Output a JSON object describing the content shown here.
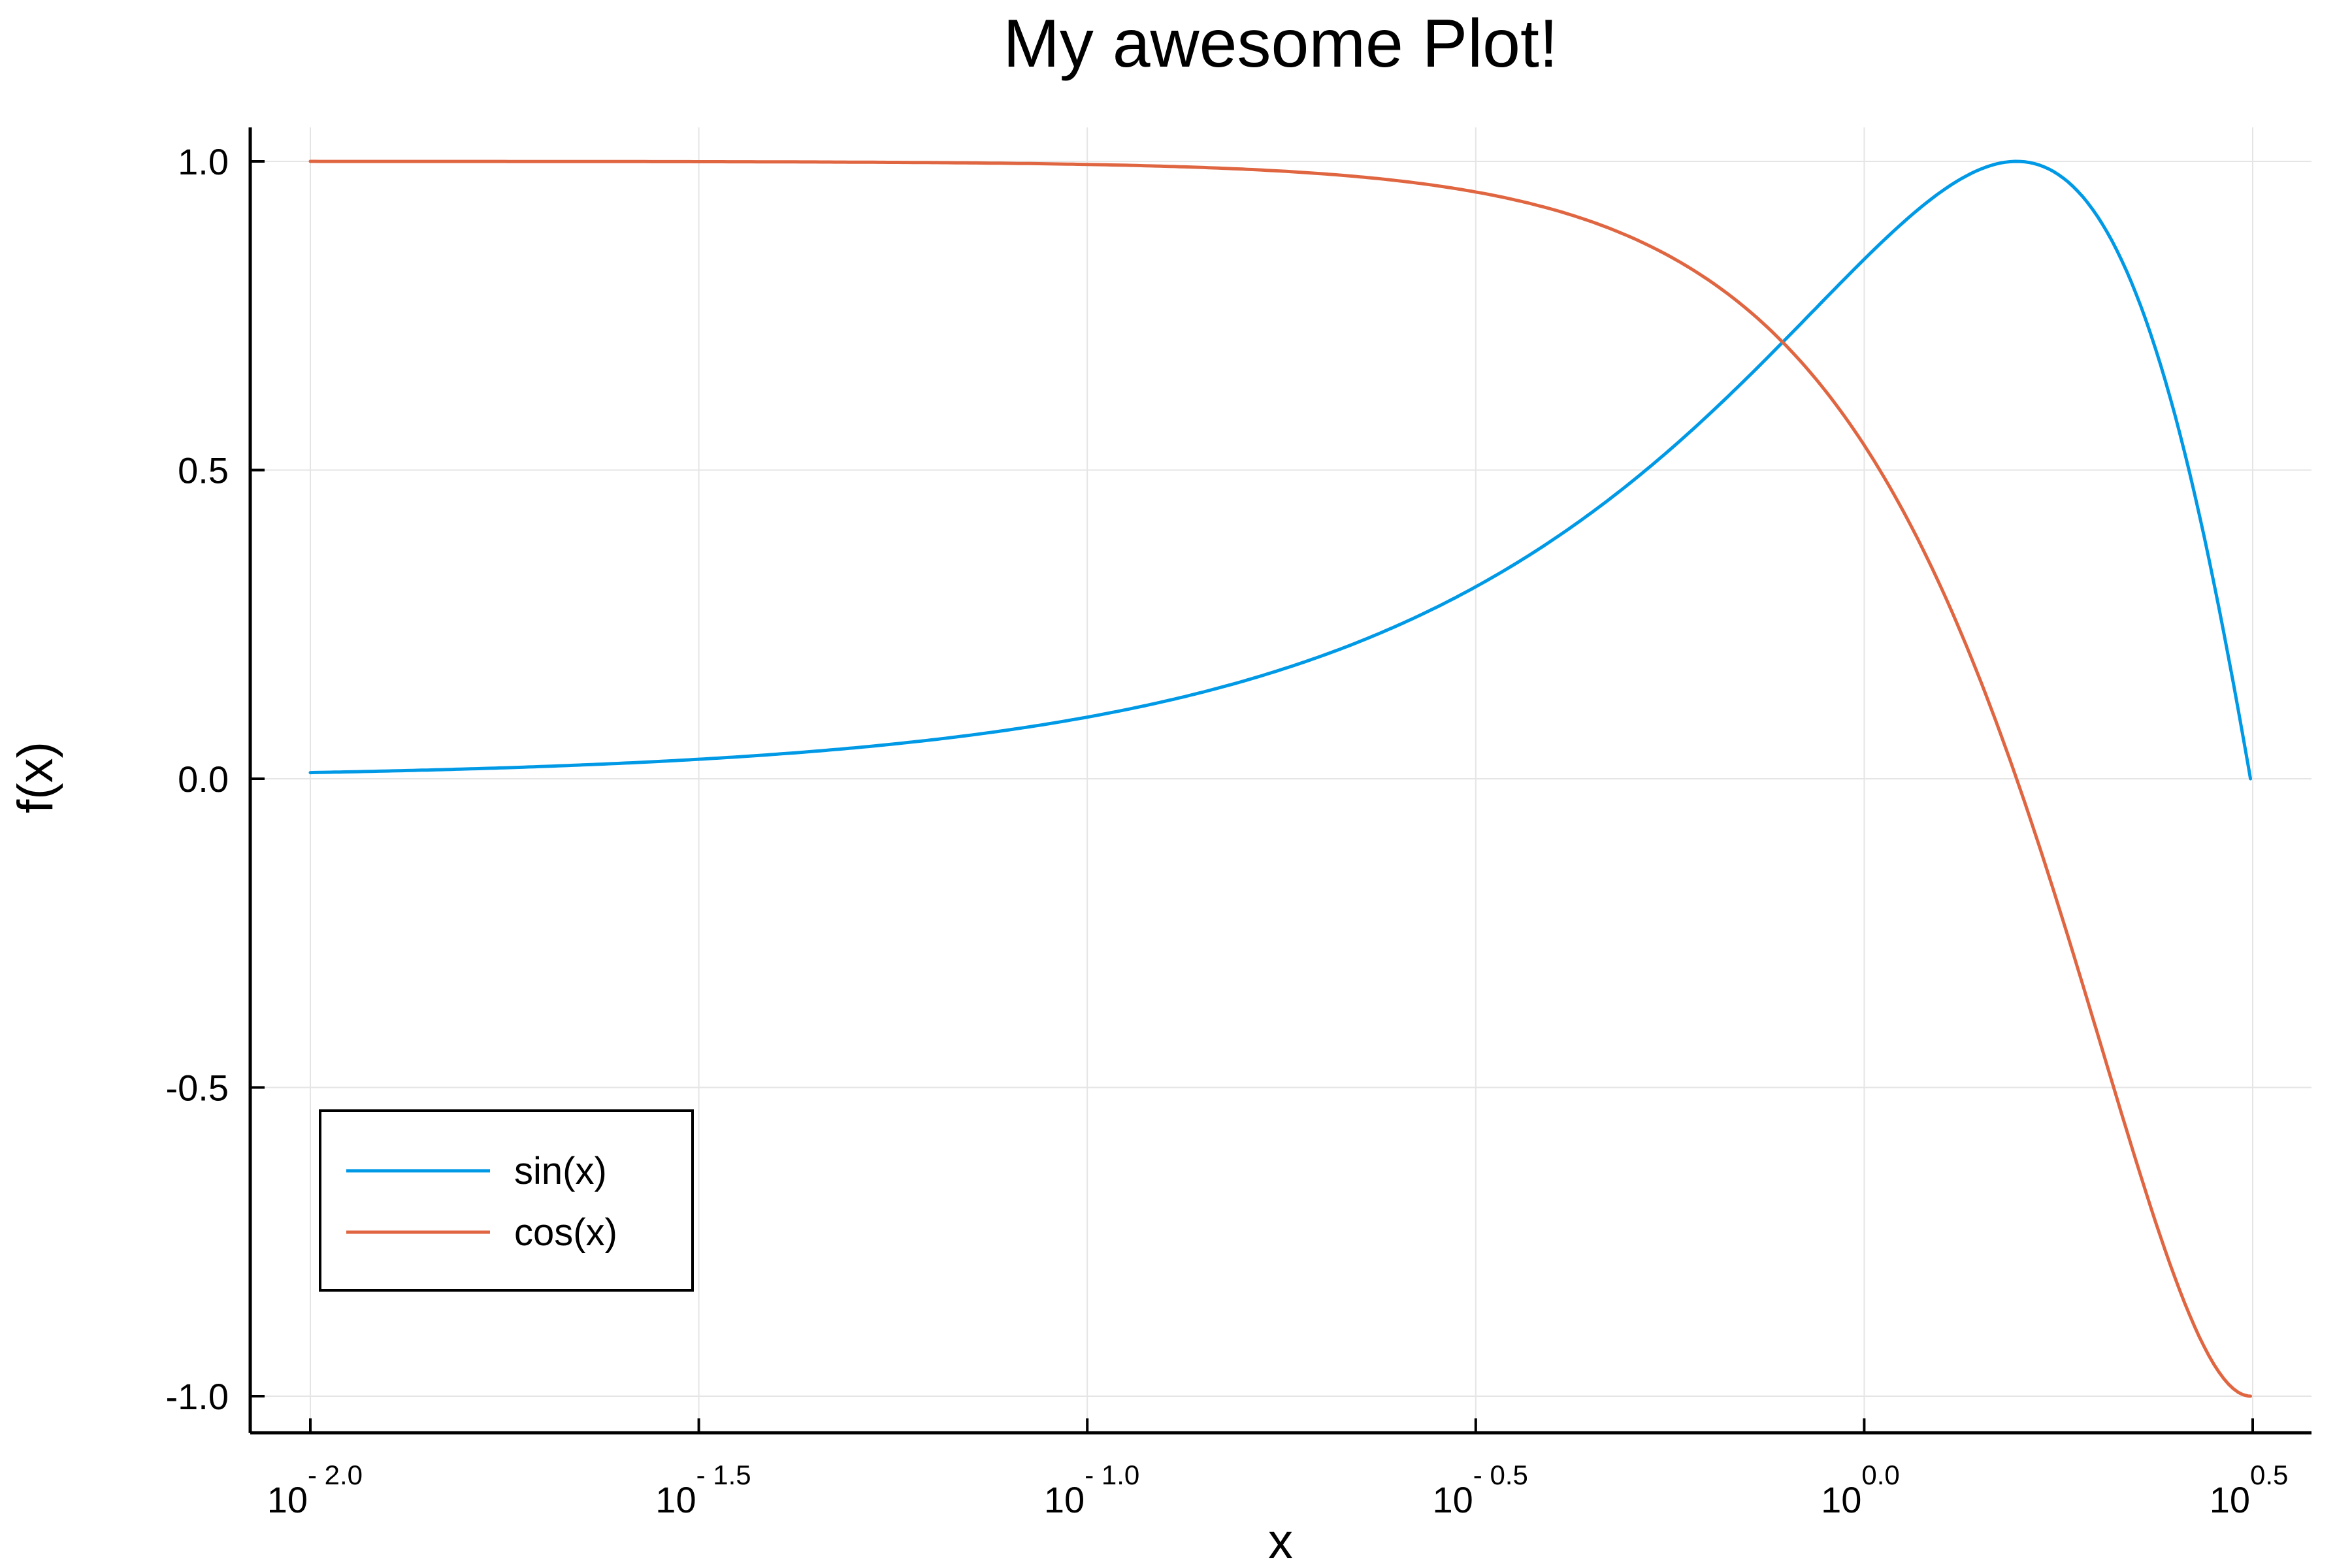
{
  "chart_data": {
    "type": "line",
    "title": "My awesome Plot!",
    "xlabel": "x",
    "ylabel": "f(x)",
    "x_scale": "log10",
    "xlim": [
      0.01,
      3.1416
    ],
    "ylim": [
      -1.0,
      1.0
    ],
    "grid": true,
    "legend_position": "bottom-left",
    "x_ticks": [
      {
        "base": "10",
        "exp": "- 2.0"
      },
      {
        "base": "10",
        "exp": "- 1.5"
      },
      {
        "base": "10",
        "exp": "- 1.0"
      },
      {
        "base": "10",
        "exp": "- 0.5"
      },
      {
        "base": "10",
        "exp": "0.0"
      },
      {
        "base": "10",
        "exp": "0.5"
      }
    ],
    "y_ticks": [
      "1.0",
      "0.5",
      "0.0",
      "-0.5",
      "-1.0"
    ],
    "x": [
      0.01,
      0.0158,
      0.025,
      0.0398,
      0.0631,
      0.1,
      0.158,
      0.251,
      0.398,
      0.631,
      0.785,
      1.0,
      1.2,
      1.4,
      1.571,
      1.8,
      2.0,
      2.2,
      2.4,
      2.6,
      2.8,
      3.0,
      3.1416
    ],
    "series": [
      {
        "name": "sin(x)",
        "color": "#0099e6",
        "values": [
          0.01,
          0.0158,
          0.025,
          0.0398,
          0.063,
          0.0998,
          0.1573,
          0.2484,
          0.3876,
          0.5898,
          0.7068,
          0.8415,
          0.932,
          0.9854,
          1.0,
          0.9738,
          0.9093,
          0.8085,
          0.6755,
          0.5155,
          0.335,
          0.1411,
          0.0
        ]
      },
      {
        "name": "cos(x)",
        "color": "#e06642",
        "values": [
          1.0,
          0.9999,
          0.9997,
          0.9992,
          0.998,
          0.995,
          0.9875,
          0.9687,
          0.9218,
          0.8074,
          0.7074,
          0.5403,
          0.3624,
          0.16997,
          0.0,
          -0.2272,
          -0.4161,
          -0.5885,
          -0.7374,
          -0.8569,
          -0.9422,
          -0.99,
          -1.0
        ]
      }
    ]
  }
}
